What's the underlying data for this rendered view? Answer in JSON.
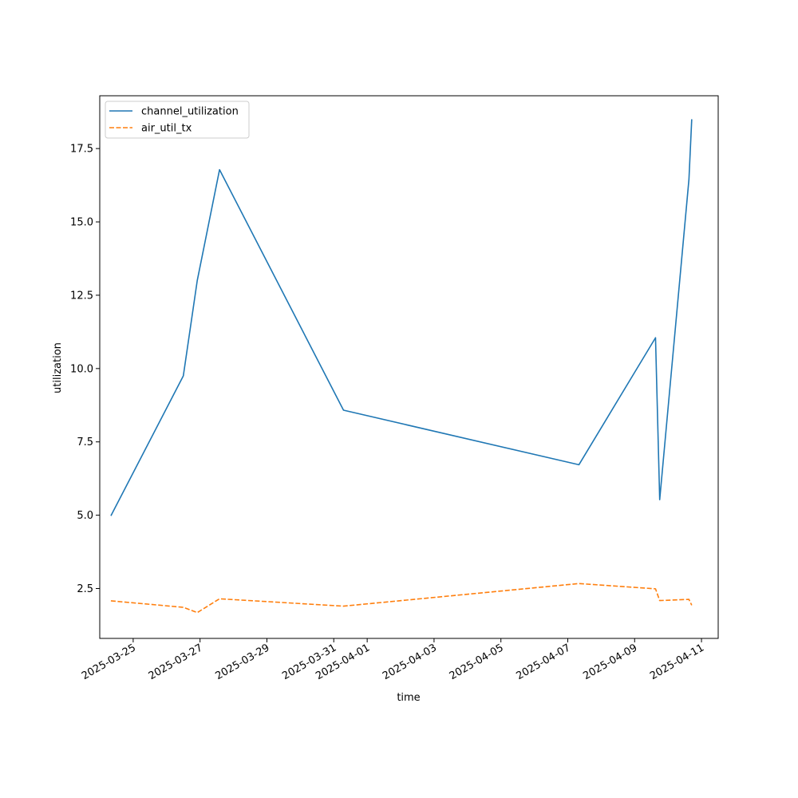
{
  "chart_data": {
    "type": "line",
    "xlabel": "time",
    "ylabel": "utilization",
    "x_axis_type": "date",
    "xlim": [
      "2025-03-24T00:00",
      "2025-04-11T12:00"
    ],
    "ylim": [
      0.8,
      19.3
    ],
    "x_ticks": [
      "2025-03-25",
      "2025-03-27",
      "2025-03-29",
      "2025-03-31",
      "2025-04-01",
      "2025-04-03",
      "2025-04-05",
      "2025-04-07",
      "2025-04-09",
      "2025-04-11"
    ],
    "y_ticks": [
      "2.5",
      "5.0",
      "7.5",
      "10.0",
      "12.5",
      "15.0",
      "17.5"
    ],
    "grid": false,
    "legend_position": "upper-left",
    "series": [
      {
        "name": "channel_utilization",
        "color": "#1f77b4",
        "line_style": "solid",
        "x": [
          "2025-03-24T08:00",
          "2025-03-26T12:00",
          "2025-03-26T22:00",
          "2025-03-27T14:00",
          "2025-03-31T07:00",
          "2025-04-07T08:00",
          "2025-04-09T15:00",
          "2025-04-09T18:00",
          "2025-04-10T15:00",
          "2025-04-10T17:00"
        ],
        "y": [
          4.98,
          9.75,
          13.0,
          16.78,
          8.58,
          6.72,
          11.05,
          5.53,
          16.45,
          18.5
        ]
      },
      {
        "name": "air_util_tx",
        "color": "#ff7f0e",
        "line_style": "dashed",
        "x": [
          "2025-03-24T08:00",
          "2025-03-26T12:00",
          "2025-03-26T22:00",
          "2025-03-27T14:00",
          "2025-03-31T07:00",
          "2025-04-07T08:00",
          "2025-04-09T15:00",
          "2025-04-09T18:00",
          "2025-04-10T15:00",
          "2025-04-10T17:00"
        ],
        "y": [
          2.08,
          1.86,
          1.68,
          2.15,
          1.9,
          2.67,
          2.49,
          2.09,
          2.13,
          1.93
        ]
      }
    ]
  }
}
